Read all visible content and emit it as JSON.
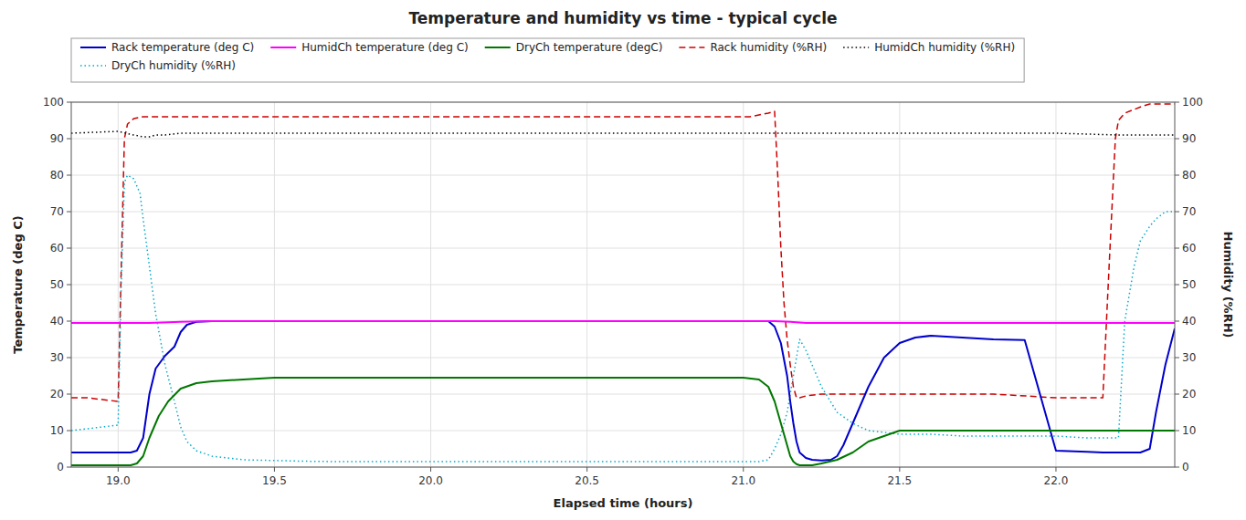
{
  "chart_data": {
    "type": "line",
    "title": "Temperature and humidity vs time - typical cycle",
    "x_label": "Elapsed time (hours)",
    "y_label": "Temperature (deg C)",
    "y2_label": "Humidity (%RH)",
    "xlim": [
      18.85,
      22.38
    ],
    "ylim": [
      0,
      100
    ],
    "y2lim": [
      0,
      100
    ],
    "xticks": [
      {
        "value": 19.0,
        "label": "19.0"
      },
      19.5,
      {
        "value": 20.0,
        "label": "20.0"
      },
      20.5,
      {
        "value": 21.0,
        "label": "21.0"
      },
      21.5,
      {
        "value": 22.0,
        "label": "22.0"
      }
    ],
    "yticks": [
      0,
      10,
      20,
      30,
      40,
      50,
      60,
      70,
      80,
      90,
      100
    ],
    "y2ticks": [
      0,
      10,
      20,
      30,
      40,
      50,
      60,
      70,
      80,
      90,
      100
    ],
    "grid": true,
    "legend": "top",
    "series": [
      {
        "name": "Rack temperature (deg C)",
        "color": "#0000cc",
        "line_style": "solid",
        "x": [
          18.85,
          18.9,
          18.95,
          19.0,
          19.02,
          19.04,
          19.06,
          19.08,
          19.1,
          19.12,
          19.15,
          19.18,
          19.2,
          19.22,
          19.25,
          19.3,
          19.4,
          19.5,
          19.6,
          19.7,
          19.8,
          19.9,
          20.0,
          20.1,
          20.2,
          20.3,
          20.4,
          20.5,
          20.6,
          20.7,
          20.8,
          20.9,
          21.0,
          21.02,
          21.05,
          21.08,
          21.1,
          21.12,
          21.14,
          21.15,
          21.16,
          21.17,
          21.18,
          21.2,
          21.22,
          21.25,
          21.28,
          21.3,
          21.32,
          21.35,
          21.4,
          21.45,
          21.5,
          21.55,
          21.6,
          21.7,
          21.8,
          21.9,
          22.0,
          22.1,
          22.15,
          22.17,
          22.2,
          22.22,
          22.25,
          22.27,
          22.3,
          22.32,
          22.35,
          22.38
        ],
        "values": [
          4.0,
          4.0,
          4.0,
          4.0,
          4.0,
          4.0,
          4.5,
          8.0,
          20.0,
          27.0,
          30.5,
          33.0,
          37.0,
          39.0,
          39.8,
          40.0,
          40.0,
          40.0,
          40.0,
          40.0,
          40.0,
          40.0,
          40.0,
          40.0,
          40.0,
          40.0,
          40.0,
          40.0,
          40.0,
          40.0,
          40.0,
          40.0,
          40.0,
          40.0,
          40.0,
          40.0,
          38.5,
          34.0,
          25.0,
          18.0,
          12.0,
          7.0,
          4.0,
          2.5,
          2.0,
          1.8,
          2.0,
          3.0,
          6.0,
          12.0,
          22.0,
          30.0,
          34.0,
          35.5,
          36.0,
          35.5,
          35.0,
          34.8,
          4.5,
          4.2,
          4.0,
          4.0,
          4.0,
          4.0,
          4.0,
          4.0,
          5.0,
          15.0,
          28.0,
          38.0
        ]
      },
      {
        "name": "HumidCh temperature (deg C)",
        "color": "#ff00ff",
        "line_style": "solid",
        "x": [
          18.85,
          19.0,
          19.05,
          19.1,
          19.2,
          19.3,
          19.5,
          20.0,
          20.5,
          21.0,
          21.05,
          21.1,
          21.15,
          21.2,
          21.3,
          21.5,
          22.0,
          22.15,
          22.2,
          22.25,
          22.3,
          22.35,
          22.38
        ],
        "values": [
          39.5,
          39.5,
          39.5,
          39.5,
          39.8,
          40.0,
          40.0,
          40.0,
          40.0,
          40.0,
          40.0,
          40.0,
          39.8,
          39.5,
          39.5,
          39.5,
          39.5,
          39.5,
          39.5,
          39.5,
          39.5,
          39.5,
          39.5
        ]
      },
      {
        "name": "DryCh temperature (degC)",
        "color": "#007700",
        "line_style": "solid",
        "x": [
          18.85,
          18.9,
          18.95,
          19.0,
          19.02,
          19.04,
          19.06,
          19.08,
          19.1,
          19.13,
          19.16,
          19.2,
          19.25,
          19.3,
          19.4,
          19.5,
          20.0,
          20.5,
          21.0,
          21.05,
          21.08,
          21.1,
          21.12,
          21.14,
          21.15,
          21.16,
          21.17,
          21.18,
          21.2,
          21.22,
          21.25,
          21.3,
          21.35,
          21.4,
          21.5,
          21.6,
          21.7,
          21.8,
          22.0,
          22.1,
          22.2,
          22.25,
          22.3,
          22.35,
          22.38
        ],
        "values": [
          0.5,
          0.5,
          0.5,
          0.5,
          0.5,
          0.5,
          1.0,
          3.0,
          8.0,
          14.0,
          18.0,
          21.5,
          23.0,
          23.5,
          24.0,
          24.5,
          24.5,
          24.5,
          24.5,
          24.0,
          22.0,
          18.0,
          12.0,
          6.0,
          3.0,
          1.5,
          0.8,
          0.5,
          0.5,
          0.5,
          1.0,
          2.0,
          4.0,
          7.0,
          10.0,
          10.0,
          10.0,
          10.0,
          10.0,
          10.0,
          10.0,
          10.0,
          10.0,
          10.0,
          10.0
        ]
      },
      {
        "name": "Rack humidity (%RH)",
        "color": "#cc0000",
        "line_style": "dashed",
        "axis": "y2",
        "x": [
          18.85,
          18.9,
          18.95,
          19.0,
          19.01,
          19.02,
          19.03,
          19.05,
          19.08,
          19.1,
          19.15,
          19.2,
          19.3,
          19.5,
          20.0,
          20.5,
          21.0,
          21.02,
          21.05,
          21.08,
          21.1,
          21.11,
          21.12,
          21.13,
          21.14,
          21.15,
          21.16,
          21.17,
          21.18,
          21.2,
          21.25,
          21.3,
          21.4,
          21.5,
          21.6,
          21.7,
          21.8,
          22.0,
          22.1,
          22.15,
          22.17,
          22.19,
          22.2,
          22.22,
          22.25,
          22.28,
          22.3,
          22.32,
          22.35,
          22.38
        ],
        "values": [
          19.0,
          19.0,
          18.5,
          18.0,
          55.0,
          90.0,
          94.0,
          95.5,
          96.0,
          96.0,
          96.0,
          96.0,
          96.0,
          96.0,
          96.0,
          96.0,
          96.0,
          96.0,
          96.5,
          97.0,
          97.5,
          80.0,
          60.0,
          45.0,
          35.0,
          28.0,
          22.0,
          19.0,
          19.0,
          19.5,
          20.0,
          20.0,
          20.0,
          20.0,
          20.0,
          20.0,
          20.0,
          19.0,
          19.0,
          19.0,
          55.0,
          90.0,
          95.0,
          97.0,
          98.0,
          99.0,
          99.5,
          99.5,
          99.5,
          99.5
        ]
      },
      {
        "name": "HumidCh humidity (%RH)",
        "color": "#000000",
        "line_style": "dotted",
        "axis": "y2",
        "x": [
          18.85,
          19.0,
          19.05,
          19.08,
          19.1,
          19.12,
          19.15,
          19.2,
          19.3,
          19.5,
          20.0,
          20.5,
          21.0,
          21.05,
          21.1,
          21.12,
          21.15,
          21.2,
          21.3,
          21.5,
          22.0,
          22.2,
          22.25,
          22.3,
          22.35,
          22.38
        ],
        "values": [
          91.5,
          92.0,
          91.0,
          90.5,
          90.5,
          91.0,
          91.0,
          91.5,
          91.5,
          91.5,
          91.5,
          91.5,
          91.5,
          91.5,
          91.5,
          91.5,
          91.5,
          91.5,
          91.5,
          91.5,
          91.5,
          91.0,
          91.0,
          91.0,
          91.0,
          91.0
        ]
      },
      {
        "name": "DryCh humidity (%RH)",
        "color": "#00aacc",
        "line_style": "dotted",
        "axis": "y2",
        "x": [
          18.85,
          18.9,
          18.95,
          19.0,
          19.01,
          19.02,
          19.03,
          19.05,
          19.07,
          19.08,
          19.1,
          19.12,
          19.15,
          19.18,
          19.2,
          19.22,
          19.25,
          19.3,
          19.4,
          19.5,
          19.6,
          19.7,
          19.8,
          20.0,
          20.5,
          21.0,
          21.05,
          21.08,
          21.1,
          21.12,
          21.14,
          21.15,
          21.16,
          21.17,
          21.18,
          21.2,
          21.22,
          21.25,
          21.3,
          21.35,
          21.4,
          21.5,
          21.6,
          21.7,
          21.8,
          22.0,
          22.1,
          22.15,
          22.2,
          22.22,
          22.25,
          22.27,
          22.3,
          22.32,
          22.35,
          22.38
        ],
        "values": [
          10.0,
          10.5,
          11.0,
          11.5,
          50.0,
          78.0,
          80.0,
          79.0,
          75.0,
          68.0,
          55.0,
          42.0,
          28.0,
          18.0,
          11.0,
          7.0,
          4.5,
          3.0,
          2.0,
          1.8,
          1.6,
          1.5,
          1.5,
          1.5,
          1.5,
          1.5,
          1.5,
          2.0,
          5.0,
          9.0,
          15.0,
          20.0,
          25.0,
          30.0,
          35.0,
          32.0,
          28.0,
          22.0,
          15.0,
          12.0,
          10.0,
          9.0,
          9.0,
          8.5,
          8.5,
          8.5,
          8.0,
          8.0,
          8.0,
          40.0,
          55.0,
          62.0,
          66.0,
          68.0,
          70.0,
          70.0
        ]
      }
    ]
  }
}
